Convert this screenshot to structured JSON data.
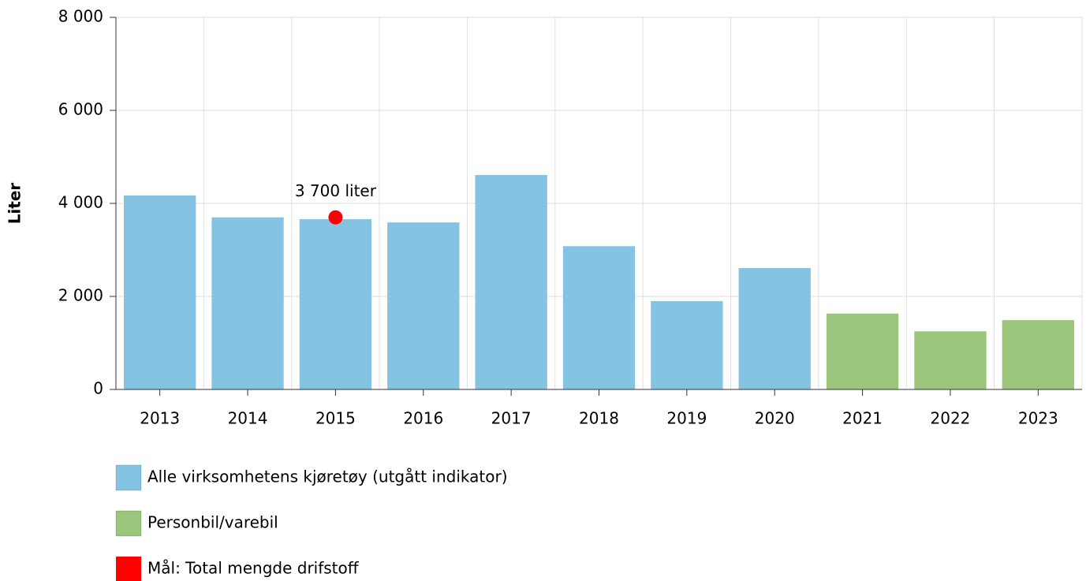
{
  "chart_data": {
    "type": "bar",
    "y_label": "Liter",
    "categories": [
      "2013",
      "2014",
      "2015",
      "2016",
      "2017",
      "2018",
      "2019",
      "2020",
      "2021",
      "2022",
      "2023"
    ],
    "series": [
      {
        "name": "Alle virksomhetens kjøretøy (utgått indikator)",
        "color": "#85c3e2",
        "type": "bar",
        "values": [
          4170,
          3700,
          3660,
          3590,
          4610,
          3080,
          1900,
          2610,
          null,
          null,
          null
        ]
      },
      {
        "name": "Personbil/varebil",
        "color": "#9bc57b",
        "type": "bar",
        "values": [
          null,
          null,
          null,
          null,
          null,
          null,
          null,
          null,
          1630,
          1250,
          1490
        ]
      },
      {
        "name": "Mål: Total mengde drifstoff",
        "color": "#ff0000",
        "type": "point",
        "values": [
          null,
          null,
          3700,
          null,
          null,
          null,
          null,
          null,
          null,
          null,
          null
        ],
        "value_labels": [
          null,
          null,
          "3 700 liter",
          null,
          null,
          null,
          null,
          null,
          null,
          null,
          null
        ]
      }
    ],
    "ylim": [
      0,
      8000
    ],
    "yticks": [
      0,
      {
        "value": 2000,
        "label": "2 000"
      },
      {
        "value": 4000,
        "label": "4 000"
      },
      {
        "value": 6000,
        "label": "6 000"
      },
      {
        "value": 8000,
        "label": "8 000"
      }
    ],
    "grid": true,
    "legend": "bottom"
  }
}
